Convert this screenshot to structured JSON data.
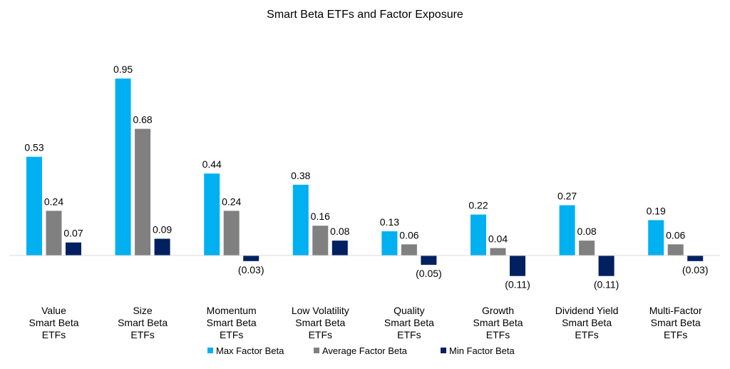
{
  "chart_data": {
    "type": "bar",
    "title": "Smart Beta ETFs and Factor Exposure",
    "xlabel": "",
    "ylabel": "",
    "grid": false,
    "legend_placement": "bottom",
    "categories": [
      [
        "Value",
        "Smart Beta",
        "ETFs"
      ],
      [
        "Size",
        "Smart Beta",
        "ETFs"
      ],
      [
        "Momentum",
        "Smart Beta",
        "ETFs"
      ],
      [
        "Low Volatility",
        "Smart Beta",
        "ETFs"
      ],
      [
        "Quality",
        "Smart Beta",
        "ETFs"
      ],
      [
        "Growth",
        "Smart Beta",
        "ETFs"
      ],
      [
        "Dividend Yield",
        "Smart Beta",
        "ETFs"
      ],
      [
        "Multi-Factor",
        "Smart Beta",
        "ETFs"
      ]
    ],
    "series": [
      {
        "name": "Max Factor Beta",
        "color": "#00B0F0",
        "values": [
          0.53,
          0.95,
          0.44,
          0.38,
          0.13,
          0.22,
          0.27,
          0.19
        ]
      },
      {
        "name": "Average Factor Beta",
        "color": "#808080",
        "values": [
          0.24,
          0.68,
          0.24,
          0.16,
          0.06,
          0.04,
          0.08,
          0.06
        ]
      },
      {
        "name": "Min Factor Beta",
        "color": "#002060",
        "values": [
          0.07,
          0.09,
          -0.03,
          0.08,
          -0.05,
          -0.11,
          -0.11,
          -0.03
        ]
      }
    ],
    "number_format": "0.00;(0.00)"
  }
}
